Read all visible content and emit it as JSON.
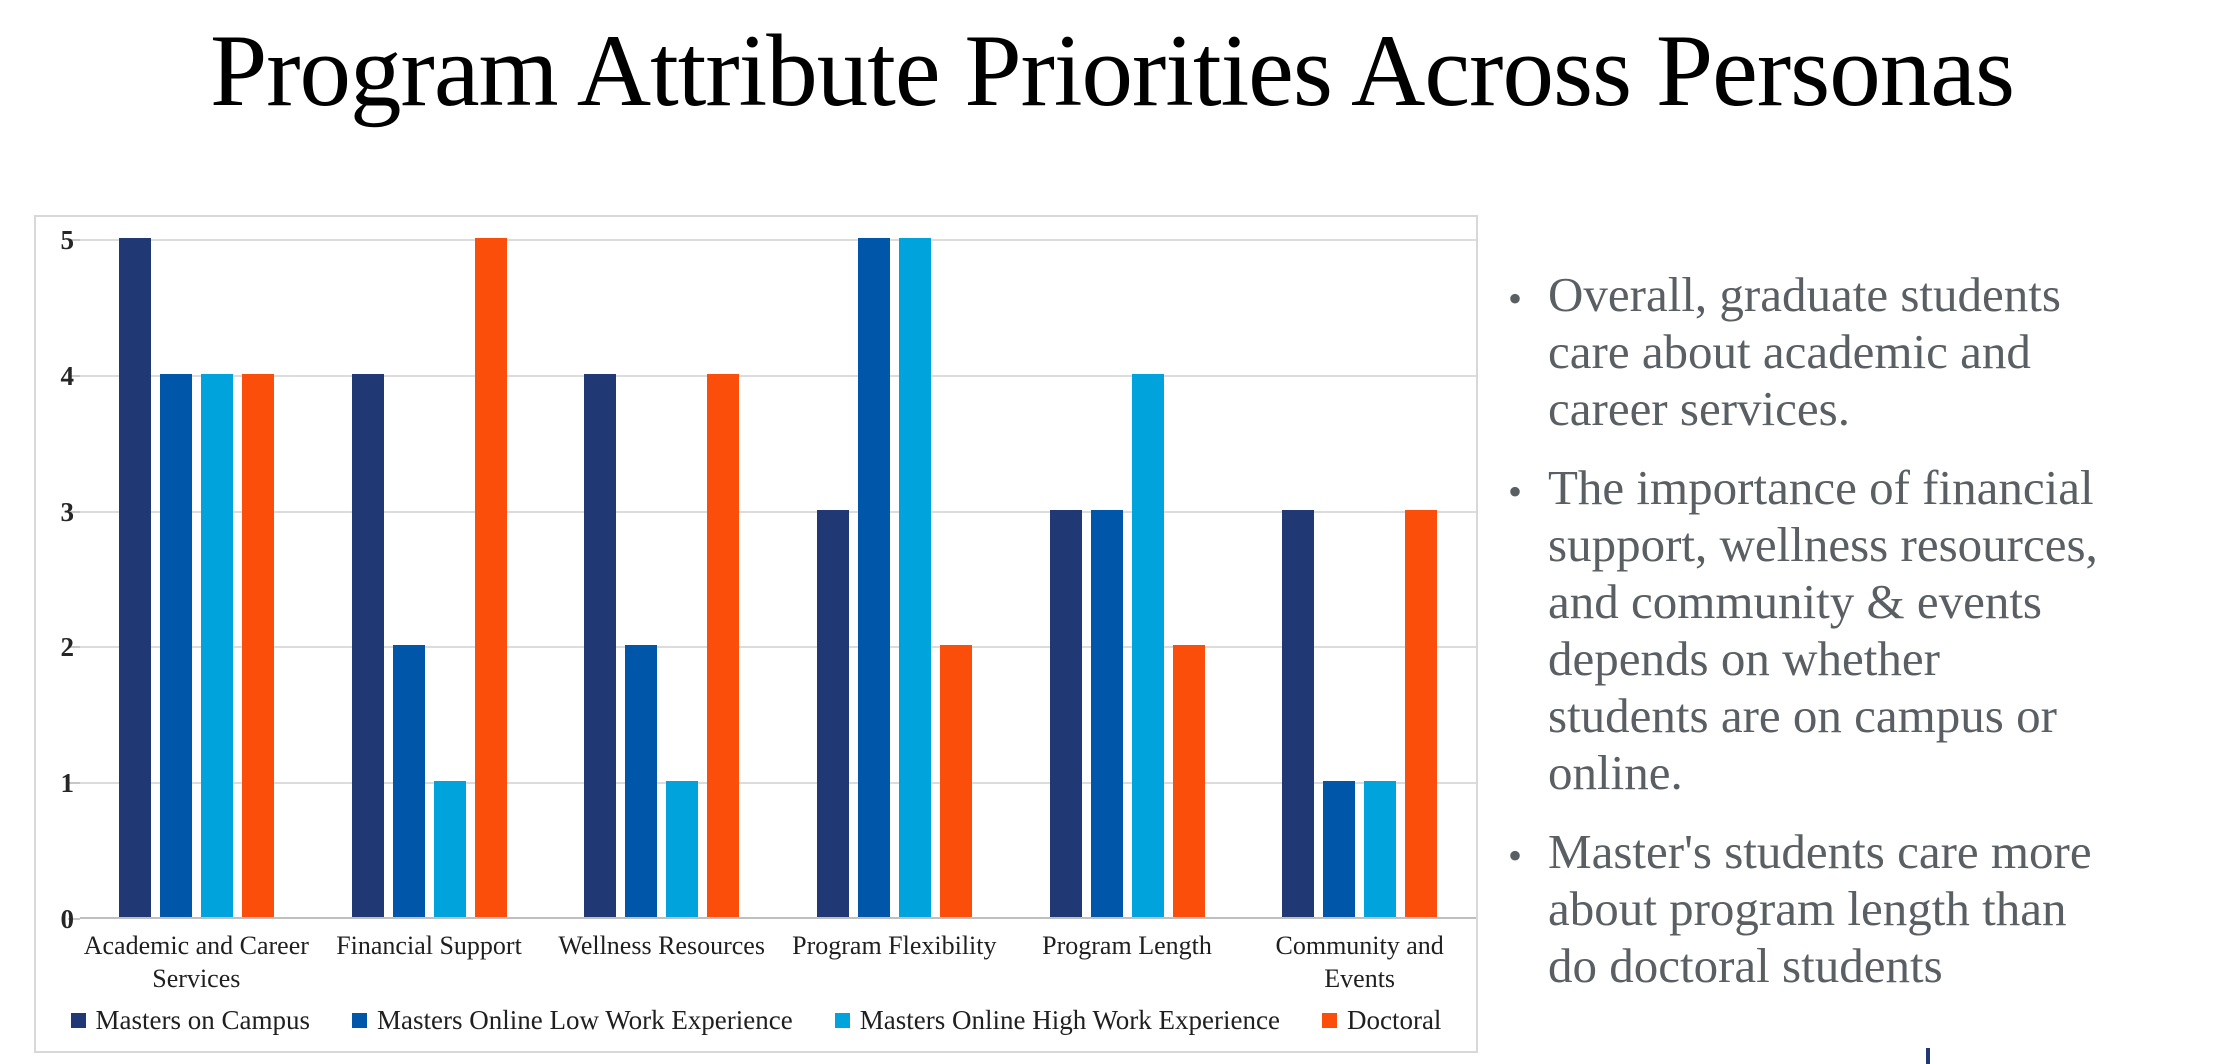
{
  "title": "Program Attribute Priorities Across Personas",
  "chart_data": {
    "type": "bar",
    "title": "",
    "xlabel": "",
    "ylabel": "",
    "categories": [
      "Academic and Career Services",
      "Financial Support",
      "Wellness Resources",
      "Program Flexibility",
      "Program Length",
      "Community and Events"
    ],
    "category_labels": [
      "Academic and Career\nServices",
      "Financial Support",
      "Wellness Resources",
      "Program Flexibility",
      "Program Length",
      "Community and\nEvents"
    ],
    "series": [
      {
        "name": "Masters on Campus",
        "color": "#203874",
        "values": [
          5,
          4,
          4,
          3,
          3,
          3
        ]
      },
      {
        "name": "Masters Online Low Work Experience",
        "color": "#0057a9",
        "values": [
          4,
          2,
          2,
          5,
          3,
          1
        ]
      },
      {
        "name": "Masters Online High Work Experience",
        "color": "#00a3dc",
        "values": [
          4,
          1,
          1,
          5,
          4,
          1
        ]
      },
      {
        "name": "Doctoral",
        "color": "#fb4e0a",
        "values": [
          4,
          5,
          4,
          2,
          2,
          3
        ]
      }
    ],
    "ylim": [
      0,
      5
    ],
    "yticks": [
      0,
      1,
      2,
      3,
      4,
      5
    ],
    "grid": true,
    "legend_position": "bottom"
  },
  "bullets": [
    "Overall, graduate students\ncare about academic and\ncareer services.",
    "The importance of financial\nsupport, wellness resources,\nand community & events\ndepends on whether\nstudents are on campus or\nonline.",
    "Master's students care more\nabout program length than\ndo doctoral students"
  ]
}
